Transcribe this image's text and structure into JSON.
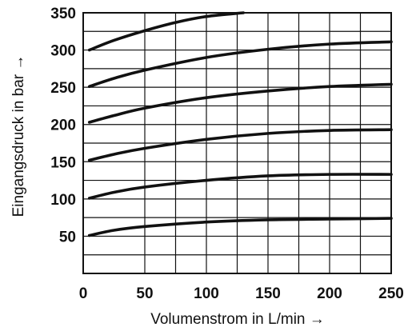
{
  "chart_data": {
    "type": "line",
    "title": "",
    "xlabel": "Volumenstrom in L/min →",
    "ylabel": "Eingangsdruck in bar →",
    "xlim": [
      0,
      250
    ],
    "ylim": [
      0,
      350
    ],
    "x_ticks": [
      "0",
      "50",
      "100",
      "150",
      "200",
      "250"
    ],
    "y_ticks": [
      "50",
      "100",
      "150",
      "200",
      "250",
      "300",
      "350"
    ],
    "grid": true,
    "legend": "none",
    "series": [
      {
        "x": [
          5,
          25,
          50,
          100,
          150,
          200,
          250
        ],
        "y": [
          51,
          58,
          63,
          69,
          72,
          73,
          74
        ]
      },
      {
        "x": [
          5,
          25,
          50,
          100,
          150,
          200,
          250
        ],
        "y": [
          101,
          109,
          116,
          125,
          131,
          133,
          133
        ]
      },
      {
        "x": [
          5,
          25,
          50,
          100,
          150,
          200,
          250
        ],
        "y": [
          152,
          160,
          168,
          180,
          188,
          192,
          193
        ]
      },
      {
        "x": [
          5,
          25,
          50,
          100,
          150,
          200,
          250
        ],
        "y": [
          203,
          212,
          222,
          236,
          245,
          251,
          254
        ]
      },
      {
        "x": [
          5,
          25,
          50,
          100,
          150,
          200,
          250
        ],
        "y": [
          251,
          262,
          273,
          290,
          301,
          308,
          311
        ]
      },
      {
        "x": [
          5,
          25,
          50,
          75,
          100,
          130
        ],
        "y": [
          300,
          313,
          326,
          337,
          345,
          350
        ]
      }
    ]
  }
}
